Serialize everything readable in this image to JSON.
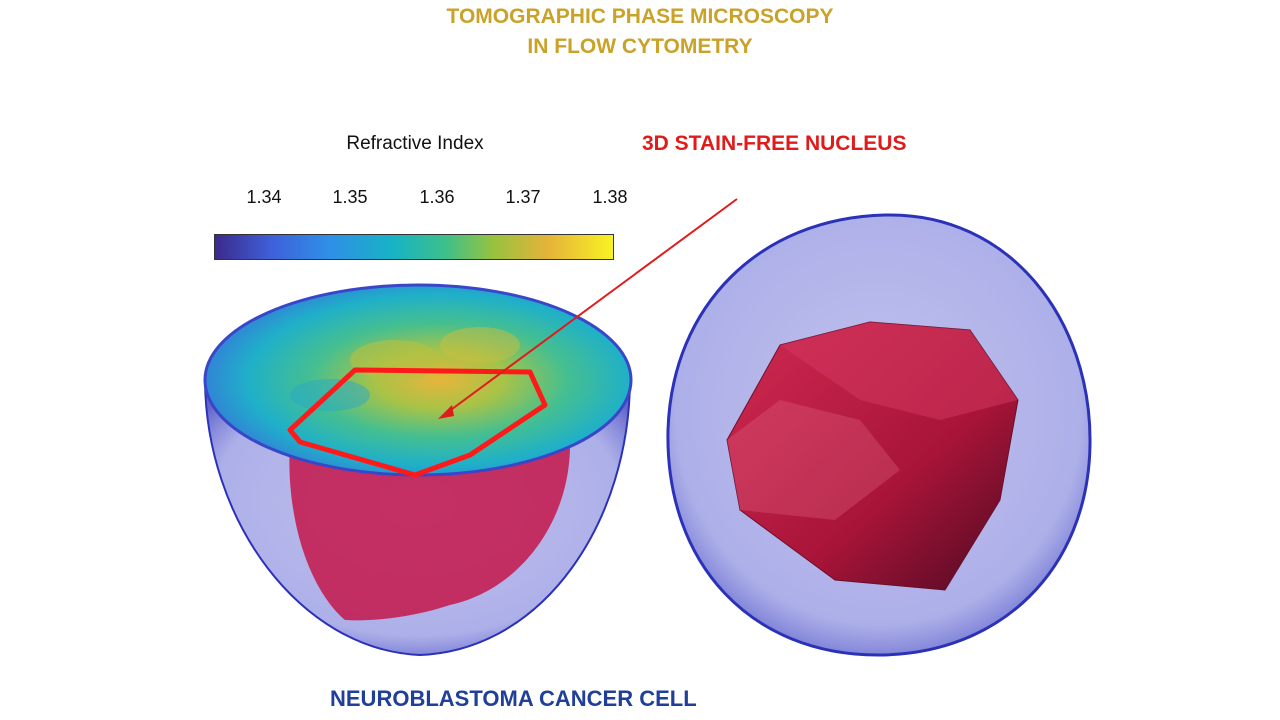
{
  "title": {
    "line1": "TOMOGRAPHIC PHASE MICROSCOPY",
    "line2": "IN FLOW CYTOMETRY"
  },
  "colorbar": {
    "title": "Refractive Index",
    "ticks": [
      "1.34",
      "1.35",
      "1.36",
      "1.37",
      "1.38"
    ],
    "colors": [
      "#3b2a8c",
      "#3f5fd9",
      "#2f8ee8",
      "#18b3c4",
      "#3ec08a",
      "#97c23f",
      "#e7b33a",
      "#f7f322"
    ]
  },
  "annotation": {
    "label": "3D STAIN-FREE NUCLEUS",
    "color": "#e01b1b"
  },
  "caption": {
    "label": "NEUROBLASTOMA CANCER CELL",
    "color": "#1f3f9a"
  },
  "colors": {
    "title": "#c9a227",
    "cell_membrane": "#6b6fd6",
    "nucleus": "#b0183a",
    "outline": "#ff1a1a"
  }
}
